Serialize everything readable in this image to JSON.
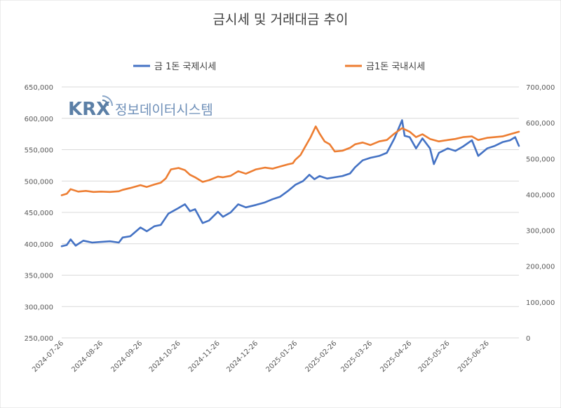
{
  "logo": {
    "brand": "KRX",
    "subtitle": "정보데이터시스템"
  },
  "chart_data": {
    "type": "line",
    "title": "금시세 및 거래대금 추이",
    "legend_position": "top",
    "grid": true,
    "x_ticks": [
      "2024-07-26",
      "2024-08-26",
      "2024-09-26",
      "2024-10-26",
      "2024-11-26",
      "2024-12-26",
      "2025-01-26",
      "2025-02-26",
      "2025-03-26",
      "2025-04-26",
      "2025-05-26",
      "2025-06-26"
    ],
    "y_left": {
      "ylim": [
        250000,
        650000
      ],
      "ticks": [
        "250,000",
        "300,000",
        "350,000",
        "400,000",
        "450,000",
        "500,000",
        "550,000",
        "600,000",
        "650,000"
      ]
    },
    "y_right": {
      "ylim": [
        0,
        700000
      ],
      "ticks": [
        "0",
        "100,000",
        "200,000",
        "300,000",
        "400,000",
        "500,000",
        "600,000",
        "700,000"
      ]
    },
    "series": [
      {
        "name": "금 1돈 국제시세",
        "axis": "left",
        "color": "#4472c4",
        "points": [
          [
            "2024-07-26",
            396000
          ],
          [
            "2024-07-30",
            398000
          ],
          [
            "2024-08-02",
            407000
          ],
          [
            "2024-08-06",
            397000
          ],
          [
            "2024-08-12",
            405000
          ],
          [
            "2024-08-19",
            402000
          ],
          [
            "2024-08-26",
            403000
          ],
          [
            "2024-09-02",
            404000
          ],
          [
            "2024-09-09",
            402000
          ],
          [
            "2024-09-12",
            410000
          ],
          [
            "2024-09-18",
            412000
          ],
          [
            "2024-09-26",
            426000
          ],
          [
            "2024-10-01",
            420000
          ],
          [
            "2024-10-07",
            428000
          ],
          [
            "2024-10-12",
            430000
          ],
          [
            "2024-10-18",
            448000
          ],
          [
            "2024-10-26",
            457000
          ],
          [
            "2024-10-31",
            463000
          ],
          [
            "2024-11-04",
            452000
          ],
          [
            "2024-11-08",
            455000
          ],
          [
            "2024-11-14",
            433000
          ],
          [
            "2024-11-19",
            437000
          ],
          [
            "2024-11-26",
            451000
          ],
          [
            "2024-11-30",
            443000
          ],
          [
            "2024-12-06",
            450000
          ],
          [
            "2024-12-12",
            463000
          ],
          [
            "2024-12-18",
            458000
          ],
          [
            "2024-12-26",
            462000
          ],
          [
            "2025-01-02",
            466000
          ],
          [
            "2025-01-08",
            471000
          ],
          [
            "2025-01-14",
            475000
          ],
          [
            "2025-01-20",
            484000
          ],
          [
            "2025-01-26",
            494000
          ],
          [
            "2025-02-01",
            500000
          ],
          [
            "2025-02-06",
            510000
          ],
          [
            "2025-02-10",
            503000
          ],
          [
            "2025-02-14",
            508000
          ],
          [
            "2025-02-20",
            504000
          ],
          [
            "2025-02-26",
            506000
          ],
          [
            "2025-03-04",
            508000
          ],
          [
            "2025-03-10",
            512000
          ],
          [
            "2025-03-14",
            522000
          ],
          [
            "2025-03-20",
            533000
          ],
          [
            "2025-03-26",
            537000
          ],
          [
            "2025-04-02",
            540000
          ],
          [
            "2025-04-08",
            545000
          ],
          [
            "2025-04-14",
            568000
          ],
          [
            "2025-04-20",
            597000
          ],
          [
            "2025-04-22",
            572000
          ],
          [
            "2025-04-26",
            570000
          ],
          [
            "2025-05-01",
            552000
          ],
          [
            "2025-05-06",
            568000
          ],
          [
            "2025-05-12",
            552000
          ],
          [
            "2025-05-15",
            527000
          ],
          [
            "2025-05-19",
            545000
          ],
          [
            "2025-05-26",
            552000
          ],
          [
            "2025-06-01",
            548000
          ],
          [
            "2025-06-07",
            555000
          ],
          [
            "2025-06-14",
            565000
          ],
          [
            "2025-06-19",
            540000
          ],
          [
            "2025-06-26",
            552000
          ],
          [
            "2025-07-02",
            556000
          ],
          [
            "2025-07-08",
            562000
          ],
          [
            "2025-07-14",
            565000
          ],
          [
            "2025-07-18",
            570000
          ],
          [
            "2025-07-21",
            556000
          ]
        ]
      },
      {
        "name": "금1돈 국내시세",
        "axis": "right",
        "color": "#ed7d31",
        "points": [
          [
            "2024-07-26",
            398000
          ],
          [
            "2024-07-30",
            402000
          ],
          [
            "2024-08-02",
            415000
          ],
          [
            "2024-08-08",
            408000
          ],
          [
            "2024-08-14",
            410000
          ],
          [
            "2024-08-20",
            407000
          ],
          [
            "2024-08-26",
            408000
          ],
          [
            "2024-09-02",
            407000
          ],
          [
            "2024-09-09",
            409000
          ],
          [
            "2024-09-12",
            413000
          ],
          [
            "2024-09-18",
            418000
          ],
          [
            "2024-09-26",
            426000
          ],
          [
            "2024-10-01",
            421000
          ],
          [
            "2024-10-07",
            428000
          ],
          [
            "2024-10-12",
            433000
          ],
          [
            "2024-10-16",
            445000
          ],
          [
            "2024-10-20",
            470000
          ],
          [
            "2024-10-26",
            474000
          ],
          [
            "2024-10-31",
            468000
          ],
          [
            "2024-11-04",
            455000
          ],
          [
            "2024-11-08",
            448000
          ],
          [
            "2024-11-14",
            435000
          ],
          [
            "2024-11-19",
            440000
          ],
          [
            "2024-11-26",
            450000
          ],
          [
            "2024-11-30",
            448000
          ],
          [
            "2024-12-06",
            452000
          ],
          [
            "2024-12-12",
            465000
          ],
          [
            "2024-12-18",
            458000
          ],
          [
            "2024-12-26",
            470000
          ],
          [
            "2025-01-02",
            475000
          ],
          [
            "2025-01-08",
            472000
          ],
          [
            "2025-01-14",
            478000
          ],
          [
            "2025-01-20",
            484000
          ],
          [
            "2025-01-24",
            487000
          ],
          [
            "2025-01-26",
            497000
          ],
          [
            "2025-01-30",
            510000
          ],
          [
            "2025-02-03",
            535000
          ],
          [
            "2025-02-07",
            560000
          ],
          [
            "2025-02-11",
            590000
          ],
          [
            "2025-02-14",
            570000
          ],
          [
            "2025-02-18",
            548000
          ],
          [
            "2025-02-22",
            540000
          ],
          [
            "2025-02-26",
            520000
          ],
          [
            "2025-03-04",
            522000
          ],
          [
            "2025-03-10",
            530000
          ],
          [
            "2025-03-14",
            540000
          ],
          [
            "2025-03-20",
            545000
          ],
          [
            "2025-03-26",
            538000
          ],
          [
            "2025-04-02",
            548000
          ],
          [
            "2025-04-08",
            552000
          ],
          [
            "2025-04-14",
            570000
          ],
          [
            "2025-04-20",
            585000
          ],
          [
            "2025-04-26",
            575000
          ],
          [
            "2025-05-01",
            560000
          ],
          [
            "2025-05-06",
            568000
          ],
          [
            "2025-05-12",
            555000
          ],
          [
            "2025-05-19",
            548000
          ],
          [
            "2025-05-26",
            552000
          ],
          [
            "2025-06-01",
            555000
          ],
          [
            "2025-06-07",
            560000
          ],
          [
            "2025-06-14",
            562000
          ],
          [
            "2025-06-19",
            552000
          ],
          [
            "2025-06-26",
            558000
          ],
          [
            "2025-07-02",
            560000
          ],
          [
            "2025-07-08",
            562000
          ],
          [
            "2025-07-14",
            568000
          ],
          [
            "2025-07-21",
            575000
          ]
        ]
      }
    ]
  }
}
